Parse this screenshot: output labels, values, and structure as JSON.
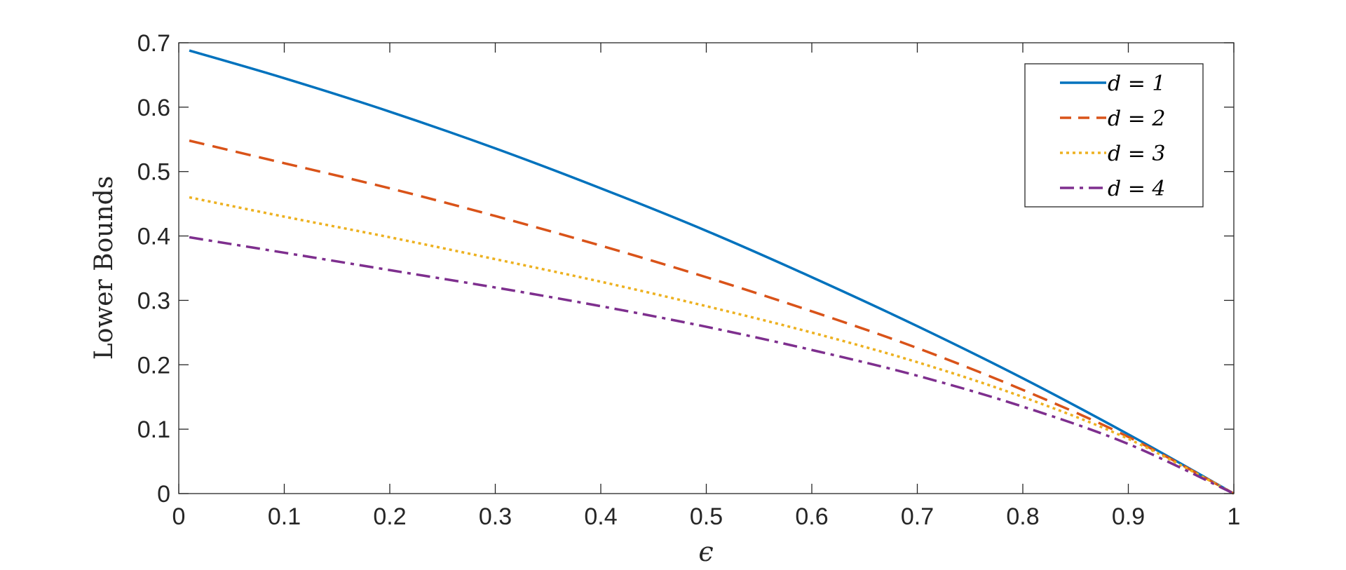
{
  "chart_data": {
    "type": "line",
    "xlabel": "ϵ",
    "ylabel": "Lower Bounds",
    "xlim": [
      0,
      1
    ],
    "ylim": [
      0,
      0.7
    ],
    "xticks": [
      0,
      0.1,
      0.2,
      0.3,
      0.4,
      0.5,
      0.6,
      0.7,
      0.8,
      0.9,
      1
    ],
    "xtick_labels": [
      "0",
      "0.1",
      "0.2",
      "0.3",
      "0.4",
      "0.5",
      "0.6",
      "0.7",
      "0.8",
      "0.9",
      "1"
    ],
    "yticks": [
      0,
      0.1,
      0.2,
      0.3,
      0.4,
      0.5,
      0.6,
      0.7
    ],
    "ytick_labels": [
      "0",
      "0.1",
      "0.2",
      "0.3",
      "0.4",
      "0.5",
      "0.6",
      "0.7"
    ],
    "grid": false,
    "legend_position": "top-right",
    "x": [
      0.01,
      0.1,
      0.2,
      0.3,
      0.4,
      0.5,
      0.6,
      0.7,
      0.8,
      0.9,
      1.0
    ],
    "series": [
      {
        "name": "d = 1",
        "color": "#0072BD",
        "dash": "solid",
        "values": [
          0.688,
          0.645,
          0.593,
          0.536,
          0.474,
          0.408,
          0.336,
          0.26,
          0.179,
          0.092,
          0.0
        ]
      },
      {
        "name": "d = 2",
        "color": "#D95319",
        "dash": "dashed",
        "values": [
          0.548,
          0.513,
          0.474,
          0.431,
          0.385,
          0.336,
          0.283,
          0.226,
          0.161,
          0.088,
          0.0
        ]
      },
      {
        "name": "d = 3",
        "color": "#EDB120",
        "dash": "dotted",
        "values": [
          0.46,
          0.43,
          0.398,
          0.364,
          0.329,
          0.291,
          0.25,
          0.204,
          0.15,
          0.085,
          0.0
        ]
      },
      {
        "name": "d = 4",
        "color": "#7E2F8E",
        "dash": "dashdot",
        "values": [
          0.398,
          0.374,
          0.347,
          0.32,
          0.291,
          0.259,
          0.223,
          0.183,
          0.135,
          0.077,
          0.0
        ]
      }
    ]
  }
}
